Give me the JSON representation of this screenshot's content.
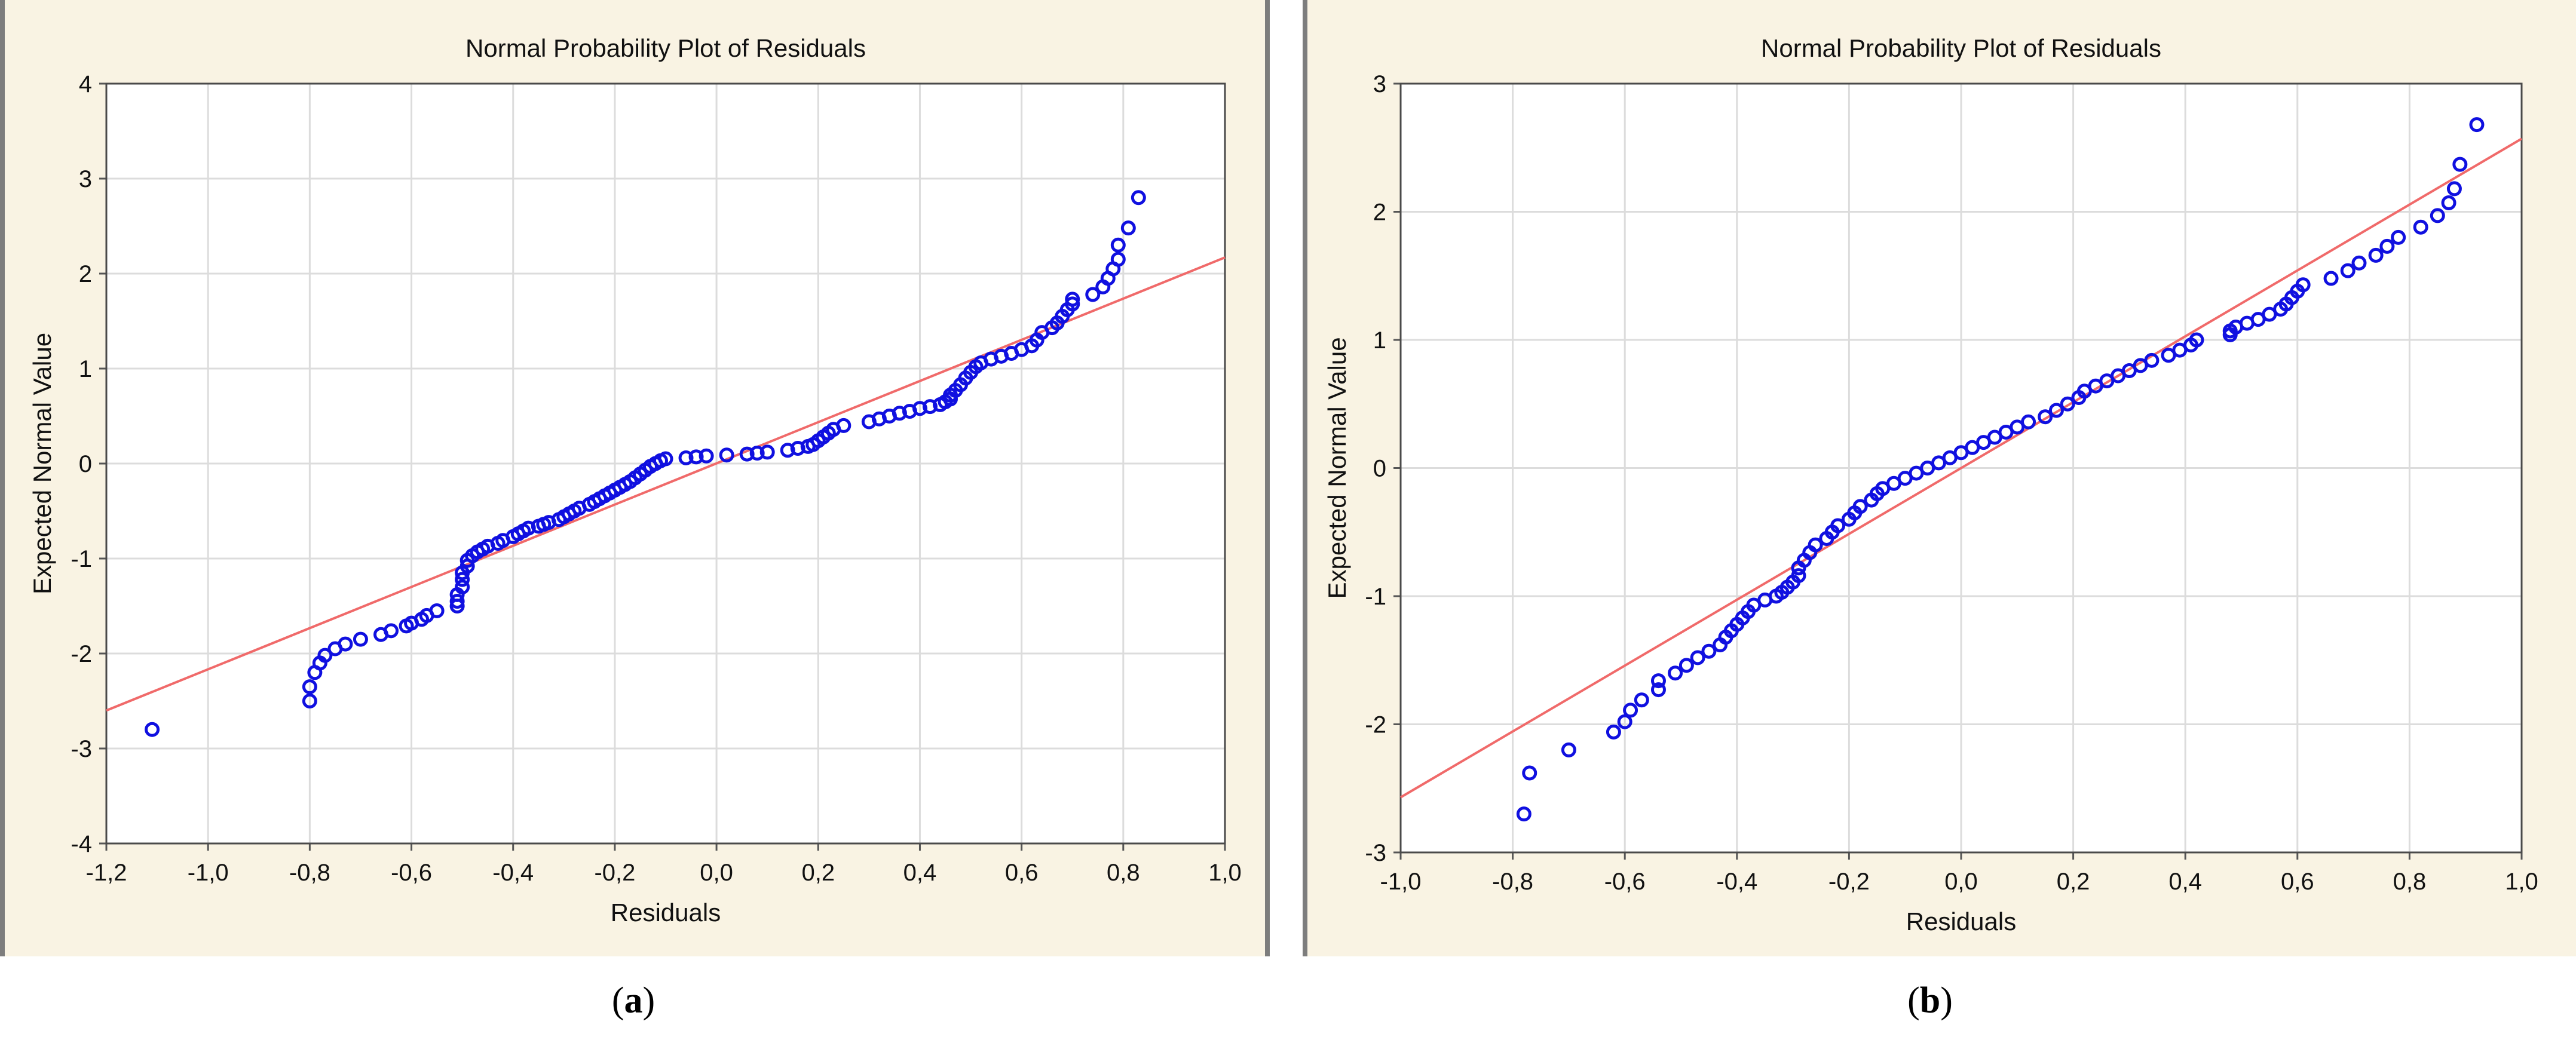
{
  "chart_data": [
    {
      "type": "scatter",
      "title": "Normal Probability Plot of Residuals",
      "xlabel": "Residuals",
      "ylabel": "Expected Normal Value",
      "xlim": [
        -1.2,
        1.0
      ],
      "ylim": [
        -4,
        4
      ],
      "xticks": [
        -1.2,
        -1.0,
        -0.8,
        -0.6,
        -0.4,
        -0.2,
        0.0,
        0.2,
        0.4,
        0.6,
        0.8,
        1.0
      ],
      "xtick_labels": [
        "-1,2",
        "-1,0",
        "-0,8",
        "-0,6",
        "-0,4",
        "-0,2",
        "0,0",
        "0,2",
        "0,4",
        "0,6",
        "0,8",
        "1,0"
      ],
      "yticks": [
        -4,
        -3,
        -2,
        -1,
        0,
        1,
        2,
        3,
        4
      ],
      "ytick_labels": [
        "-4",
        "-3",
        "-2",
        "-1",
        "0",
        "1",
        "2",
        "3",
        "4"
      ],
      "grid": true,
      "marker": "open-circle",
      "point_color": "#1010e0",
      "line_color": "#f06a6a",
      "fit_line": [
        [
          -1.2,
          -2.6
        ],
        [
          1.0,
          2.17
        ]
      ],
      "points": [
        [
          -1.11,
          -2.8
        ],
        [
          -0.8,
          -2.5
        ],
        [
          -0.8,
          -2.35
        ],
        [
          -0.79,
          -2.2
        ],
        [
          -0.78,
          -2.1
        ],
        [
          -0.77,
          -2.02
        ],
        [
          -0.75,
          -1.95
        ],
        [
          -0.73,
          -1.9
        ],
        [
          -0.7,
          -1.85
        ],
        [
          -0.66,
          -1.8
        ],
        [
          -0.64,
          -1.76
        ],
        [
          -0.61,
          -1.71
        ],
        [
          -0.6,
          -1.68
        ],
        [
          -0.58,
          -1.64
        ],
        [
          -0.57,
          -1.6
        ],
        [
          -0.55,
          -1.55
        ],
        [
          -0.51,
          -1.5
        ],
        [
          -0.51,
          -1.45
        ],
        [
          -0.51,
          -1.38
        ],
        [
          -0.5,
          -1.3
        ],
        [
          -0.5,
          -1.22
        ],
        [
          -0.5,
          -1.15
        ],
        [
          -0.49,
          -1.08
        ],
        [
          -0.49,
          -1.02
        ],
        [
          -0.48,
          -0.97
        ],
        [
          -0.47,
          -0.93
        ],
        [
          -0.46,
          -0.9
        ],
        [
          -0.45,
          -0.87
        ],
        [
          -0.43,
          -0.84
        ],
        [
          -0.42,
          -0.81
        ],
        [
          -0.4,
          -0.77
        ],
        [
          -0.39,
          -0.74
        ],
        [
          -0.38,
          -0.71
        ],
        [
          -0.37,
          -0.68
        ],
        [
          -0.35,
          -0.66
        ],
        [
          -0.34,
          -0.64
        ],
        [
          -0.33,
          -0.62
        ],
        [
          -0.31,
          -0.59
        ],
        [
          -0.3,
          -0.56
        ],
        [
          -0.29,
          -0.53
        ],
        [
          -0.28,
          -0.5
        ],
        [
          -0.27,
          -0.47
        ],
        [
          -0.25,
          -0.43
        ],
        [
          -0.24,
          -0.4
        ],
        [
          -0.23,
          -0.37
        ],
        [
          -0.22,
          -0.34
        ],
        [
          -0.21,
          -0.31
        ],
        [
          -0.2,
          -0.28
        ],
        [
          -0.19,
          -0.25
        ],
        [
          -0.18,
          -0.22
        ],
        [
          -0.17,
          -0.19
        ],
        [
          -0.16,
          -0.15
        ],
        [
          -0.15,
          -0.11
        ],
        [
          -0.14,
          -0.07
        ],
        [
          -0.13,
          -0.03
        ],
        [
          -0.12,
          0.0
        ],
        [
          -0.11,
          0.03
        ],
        [
          -0.1,
          0.05
        ],
        [
          -0.06,
          0.06
        ],
        [
          -0.04,
          0.07
        ],
        [
          -0.02,
          0.08
        ],
        [
          0.02,
          0.09
        ],
        [
          0.06,
          0.1
        ],
        [
          0.08,
          0.11
        ],
        [
          0.1,
          0.12
        ],
        [
          0.14,
          0.14
        ],
        [
          0.16,
          0.16
        ],
        [
          0.18,
          0.18
        ],
        [
          0.19,
          0.2
        ],
        [
          0.2,
          0.24
        ],
        [
          0.21,
          0.28
        ],
        [
          0.22,
          0.32
        ],
        [
          0.23,
          0.36
        ],
        [
          0.25,
          0.4
        ],
        [
          0.3,
          0.44
        ],
        [
          0.32,
          0.47
        ],
        [
          0.34,
          0.5
        ],
        [
          0.36,
          0.53
        ],
        [
          0.38,
          0.55
        ],
        [
          0.4,
          0.58
        ],
        [
          0.42,
          0.6
        ],
        [
          0.44,
          0.62
        ],
        [
          0.45,
          0.65
        ],
        [
          0.46,
          0.68
        ],
        [
          0.46,
          0.72
        ],
        [
          0.47,
          0.77
        ],
        [
          0.48,
          0.83
        ],
        [
          0.49,
          0.9
        ],
        [
          0.5,
          0.96
        ],
        [
          0.51,
          1.02
        ],
        [
          0.52,
          1.06
        ],
        [
          0.54,
          1.1
        ],
        [
          0.56,
          1.13
        ],
        [
          0.58,
          1.16
        ],
        [
          0.6,
          1.2
        ],
        [
          0.62,
          1.24
        ],
        [
          0.63,
          1.3
        ],
        [
          0.64,
          1.38
        ],
        [
          0.66,
          1.43
        ],
        [
          0.67,
          1.48
        ],
        [
          0.68,
          1.55
        ],
        [
          0.69,
          1.62
        ],
        [
          0.7,
          1.68
        ],
        [
          0.7,
          1.73
        ],
        [
          0.74,
          1.78
        ],
        [
          0.76,
          1.86
        ],
        [
          0.77,
          1.95
        ],
        [
          0.78,
          2.05
        ],
        [
          0.79,
          2.15
        ],
        [
          0.79,
          2.3
        ],
        [
          0.81,
          2.48
        ],
        [
          0.83,
          2.8
        ]
      ]
    },
    {
      "type": "scatter",
      "title": "Normal Probability Plot of Residuals",
      "xlabel": "Residuals",
      "ylabel": "Expected Normal Value",
      "xlim": [
        -1.0,
        1.0
      ],
      "ylim": [
        -3,
        3
      ],
      "xticks": [
        -1.0,
        -0.8,
        -0.6,
        -0.4,
        -0.2,
        0.0,
        0.2,
        0.4,
        0.6,
        0.8,
        1.0
      ],
      "xtick_labels": [
        "-1,0",
        "-0,8",
        "-0,6",
        "-0,4",
        "-0,2",
        "0,0",
        "0,2",
        "0,4",
        "0,6",
        "0,8",
        "1,0"
      ],
      "yticks": [
        -3,
        -2,
        -1,
        0,
        1,
        2,
        3
      ],
      "ytick_labels": [
        "-3",
        "-2",
        "-1",
        "0",
        "1",
        "2",
        "3"
      ],
      "grid": true,
      "marker": "open-circle",
      "point_color": "#1010e0",
      "line_color": "#f06a6a",
      "fit_line": [
        [
          -1.0,
          -2.57
        ],
        [
          1.0,
          2.57
        ]
      ],
      "points": [
        [
          -0.78,
          -2.7
        ],
        [
          -0.77,
          -2.38
        ],
        [
          -0.7,
          -2.2
        ],
        [
          -0.62,
          -2.06
        ],
        [
          -0.6,
          -1.98
        ],
        [
          -0.59,
          -1.89
        ],
        [
          -0.57,
          -1.81
        ],
        [
          -0.54,
          -1.73
        ],
        [
          -0.54,
          -1.66
        ],
        [
          -0.51,
          -1.6
        ],
        [
          -0.49,
          -1.54
        ],
        [
          -0.47,
          -1.48
        ],
        [
          -0.45,
          -1.43
        ],
        [
          -0.43,
          -1.38
        ],
        [
          -0.42,
          -1.32
        ],
        [
          -0.41,
          -1.27
        ],
        [
          -0.4,
          -1.22
        ],
        [
          -0.39,
          -1.17
        ],
        [
          -0.38,
          -1.12
        ],
        [
          -0.37,
          -1.07
        ],
        [
          -0.35,
          -1.03
        ],
        [
          -0.33,
          -1.0
        ],
        [
          -0.32,
          -0.97
        ],
        [
          -0.31,
          -0.93
        ],
        [
          -0.3,
          -0.89
        ],
        [
          -0.29,
          -0.84
        ],
        [
          -0.29,
          -0.78
        ],
        [
          -0.28,
          -0.72
        ],
        [
          -0.27,
          -0.66
        ],
        [
          -0.26,
          -0.6
        ],
        [
          -0.24,
          -0.55
        ],
        [
          -0.23,
          -0.5
        ],
        [
          -0.22,
          -0.45
        ],
        [
          -0.2,
          -0.4
        ],
        [
          -0.19,
          -0.35
        ],
        [
          -0.18,
          -0.3
        ],
        [
          -0.16,
          -0.25
        ],
        [
          -0.15,
          -0.2
        ],
        [
          -0.14,
          -0.16
        ],
        [
          -0.12,
          -0.12
        ],
        [
          -0.1,
          -0.08
        ],
        [
          -0.08,
          -0.04
        ],
        [
          -0.06,
          0.0
        ],
        [
          -0.04,
          0.04
        ],
        [
          -0.02,
          0.08
        ],
        [
          0.0,
          0.12
        ],
        [
          0.02,
          0.16
        ],
        [
          0.04,
          0.2
        ],
        [
          0.06,
          0.24
        ],
        [
          0.08,
          0.28
        ],
        [
          0.1,
          0.32
        ],
        [
          0.12,
          0.36
        ],
        [
          0.15,
          0.4
        ],
        [
          0.17,
          0.45
        ],
        [
          0.19,
          0.5
        ],
        [
          0.21,
          0.55
        ],
        [
          0.22,
          0.6
        ],
        [
          0.24,
          0.64
        ],
        [
          0.26,
          0.68
        ],
        [
          0.28,
          0.72
        ],
        [
          0.3,
          0.76
        ],
        [
          0.32,
          0.8
        ],
        [
          0.34,
          0.84
        ],
        [
          0.37,
          0.88
        ],
        [
          0.39,
          0.92
        ],
        [
          0.41,
          0.96
        ],
        [
          0.42,
          1.0
        ],
        [
          0.48,
          1.04
        ],
        [
          0.48,
          1.07
        ],
        [
          0.49,
          1.1
        ],
        [
          0.51,
          1.13
        ],
        [
          0.53,
          1.16
        ],
        [
          0.55,
          1.2
        ],
        [
          0.57,
          1.24
        ],
        [
          0.58,
          1.28
        ],
        [
          0.59,
          1.33
        ],
        [
          0.6,
          1.38
        ],
        [
          0.61,
          1.43
        ],
        [
          0.66,
          1.48
        ],
        [
          0.69,
          1.54
        ],
        [
          0.71,
          1.6
        ],
        [
          0.74,
          1.66
        ],
        [
          0.76,
          1.73
        ],
        [
          0.78,
          1.8
        ],
        [
          0.82,
          1.88
        ],
        [
          0.85,
          1.97
        ],
        [
          0.87,
          2.07
        ],
        [
          0.88,
          2.18
        ],
        [
          0.89,
          2.37
        ],
        [
          0.92,
          2.68
        ]
      ]
    }
  ],
  "captions": [
    {
      "open": "(",
      "letter": "a",
      "close": ")"
    },
    {
      "open": "(",
      "letter": "b",
      "close": ")"
    }
  ]
}
